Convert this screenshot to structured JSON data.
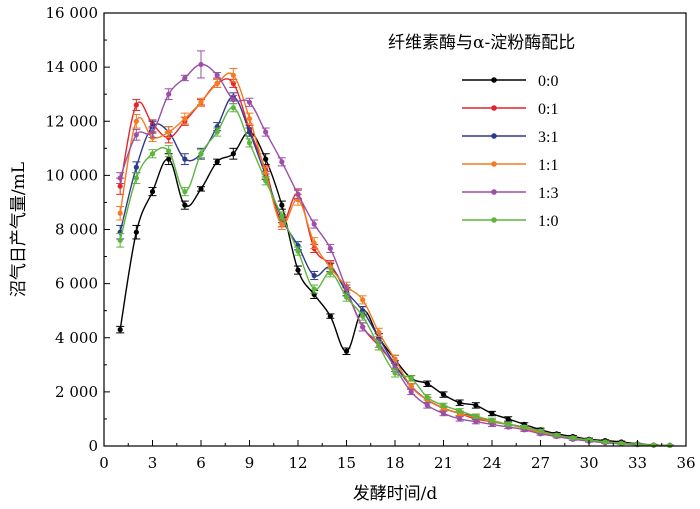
{
  "chart_data": {
    "type": "line",
    "xlabel": "发酵时间/d",
    "ylabel": "沼气日产气量/mL",
    "xlim": [
      0,
      36
    ],
    "ylim": [
      0,
      16000
    ],
    "x_ticks": [
      0,
      3,
      6,
      9,
      12,
      15,
      18,
      21,
      24,
      27,
      30,
      33,
      36
    ],
    "y_ticks": [
      0,
      2000,
      4000,
      6000,
      8000,
      10000,
      12000,
      14000,
      16000
    ],
    "y_tick_labels": [
      "0",
      "2 000",
      "4 000",
      "6 000",
      "8 000",
      "10 000",
      "12 000",
      "14 000",
      "16 000"
    ],
    "grid": false,
    "legend": {
      "title": "纤维素酶与α-淀粉酶配比",
      "position": "top-right"
    },
    "x": [
      1,
      2,
      3,
      4,
      5,
      6,
      7,
      8,
      9,
      10,
      11,
      12,
      13,
      14,
      15,
      16,
      17,
      18,
      19,
      20,
      21,
      22,
      23,
      24,
      25,
      26,
      27,
      28,
      29,
      30,
      31,
      32,
      33,
      34,
      35
    ],
    "series": [
      {
        "name": "0:0",
        "color": "#000000",
        "values": [
          4300,
          7900,
          9400,
          10600,
          8900,
          9500,
          10500,
          10800,
          11600,
          10600,
          8900,
          6500,
          5600,
          4800,
          3500,
          5000,
          4000,
          3200,
          2500,
          2300,
          1900,
          1600,
          1500,
          1200,
          1000,
          800,
          600,
          450,
          350,
          250,
          200,
          150,
          80,
          40,
          30
        ],
        "errors": [
          120,
          250,
          150,
          200,
          150,
          80,
          100,
          200,
          150,
          200,
          150,
          150,
          150,
          80,
          120,
          150,
          150,
          150,
          100,
          100,
          100,
          100,
          100,
          80,
          80,
          60,
          60,
          50,
          40,
          40,
          30,
          30,
          20,
          20,
          10
        ]
      },
      {
        "name": "0:1",
        "color": "#e4242a",
        "values": [
          9600,
          12600,
          11900,
          11400,
          12000,
          12700,
          13400,
          13400,
          11700,
          10200,
          8300,
          9300,
          7300,
          6700,
          5700,
          4400,
          3700,
          3000,
          2200,
          1700,
          1400,
          1200,
          1000,
          900,
          800,
          700,
          550,
          400,
          300,
          220,
          150,
          100,
          60,
          30,
          20
        ],
        "errors": [
          300,
          200,
          150,
          200,
          150,
          100,
          150,
          150,
          150,
          150,
          200,
          200,
          150,
          150,
          150,
          150,
          150,
          150,
          100,
          100,
          80,
          80,
          80,
          80,
          60,
          60,
          50,
          50,
          40,
          40,
          30,
          20,
          20,
          10,
          10
        ]
      },
      {
        "name": "3:1",
        "color": "#2e3a8c",
        "values": [
          7900,
          10300,
          11800,
          11600,
          10600,
          10800,
          11800,
          12900,
          11600,
          10000,
          8400,
          7400,
          6300,
          6600,
          5700,
          5000,
          4000,
          3000,
          2200,
          1700,
          1400,
          1200,
          1100,
          900,
          800,
          700,
          550,
          400,
          300,
          220,
          150,
          100,
          60,
          30,
          20
        ],
        "errors": [
          250,
          200,
          200,
          200,
          200,
          200,
          150,
          150,
          150,
          150,
          150,
          150,
          150,
          150,
          150,
          150,
          150,
          150,
          100,
          100,
          80,
          80,
          80,
          80,
          60,
          60,
          50,
          50,
          40,
          40,
          30,
          20,
          20,
          10,
          10
        ]
      },
      {
        "name": "1:1",
        "color": "#f47b20",
        "values": [
          8600,
          12000,
          11400,
          11600,
          12100,
          12700,
          13400,
          13700,
          12100,
          10100,
          8200,
          9100,
          7500,
          6600,
          5900,
          5400,
          4200,
          3200,
          2200,
          1700,
          1400,
          1200,
          1050,
          900,
          800,
          650,
          500,
          400,
          300,
          220,
          150,
          100,
          60,
          30,
          20
        ],
        "errors": [
          250,
          250,
          150,
          200,
          200,
          150,
          150,
          250,
          200,
          200,
          200,
          200,
          200,
          200,
          150,
          150,
          150,
          150,
          100,
          100,
          80,
          80,
          80,
          80,
          60,
          60,
          50,
          50,
          40,
          40,
          30,
          20,
          20,
          10,
          10
        ]
      },
      {
        "name": "1:3",
        "color": "#9b4fa6",
        "values": [
          9900,
          11500,
          11600,
          13000,
          13600,
          14100,
          13700,
          12800,
          12700,
          11600,
          10500,
          9300,
          8200,
          7300,
          5800,
          4400,
          3800,
          2900,
          2000,
          1500,
          1200,
          1000,
          900,
          800,
          700,
          600,
          450,
          350,
          250,
          180,
          120,
          80,
          50,
          30,
          20
        ],
        "errors": [
          200,
          200,
          200,
          200,
          100,
          500,
          100,
          150,
          150,
          150,
          150,
          150,
          150,
          150,
          150,
          150,
          150,
          150,
          100,
          100,
          80,
          80,
          80,
          80,
          60,
          60,
          50,
          50,
          40,
          40,
          30,
          20,
          20,
          10,
          10
        ]
      },
      {
        "name": "1:0",
        "color": "#5cb63c",
        "values": [
          7600,
          9900,
          10800,
          10900,
          9400,
          10800,
          11600,
          12500,
          11200,
          9800,
          8500,
          7200,
          5800,
          6400,
          5500,
          4800,
          3700,
          2700,
          2500,
          1800,
          1500,
          1300,
          1100,
          950,
          800,
          700,
          550,
          400,
          300,
          220,
          150,
          100,
          60,
          30,
          20
        ],
        "errors": [
          250,
          200,
          150,
          200,
          150,
          150,
          150,
          150,
          150,
          150,
          150,
          150,
          150,
          150,
          150,
          150,
          150,
          150,
          100,
          100,
          80,
          80,
          80,
          80,
          60,
          60,
          50,
          50,
          40,
          40,
          30,
          20,
          20,
          10,
          10
        ]
      }
    ]
  }
}
